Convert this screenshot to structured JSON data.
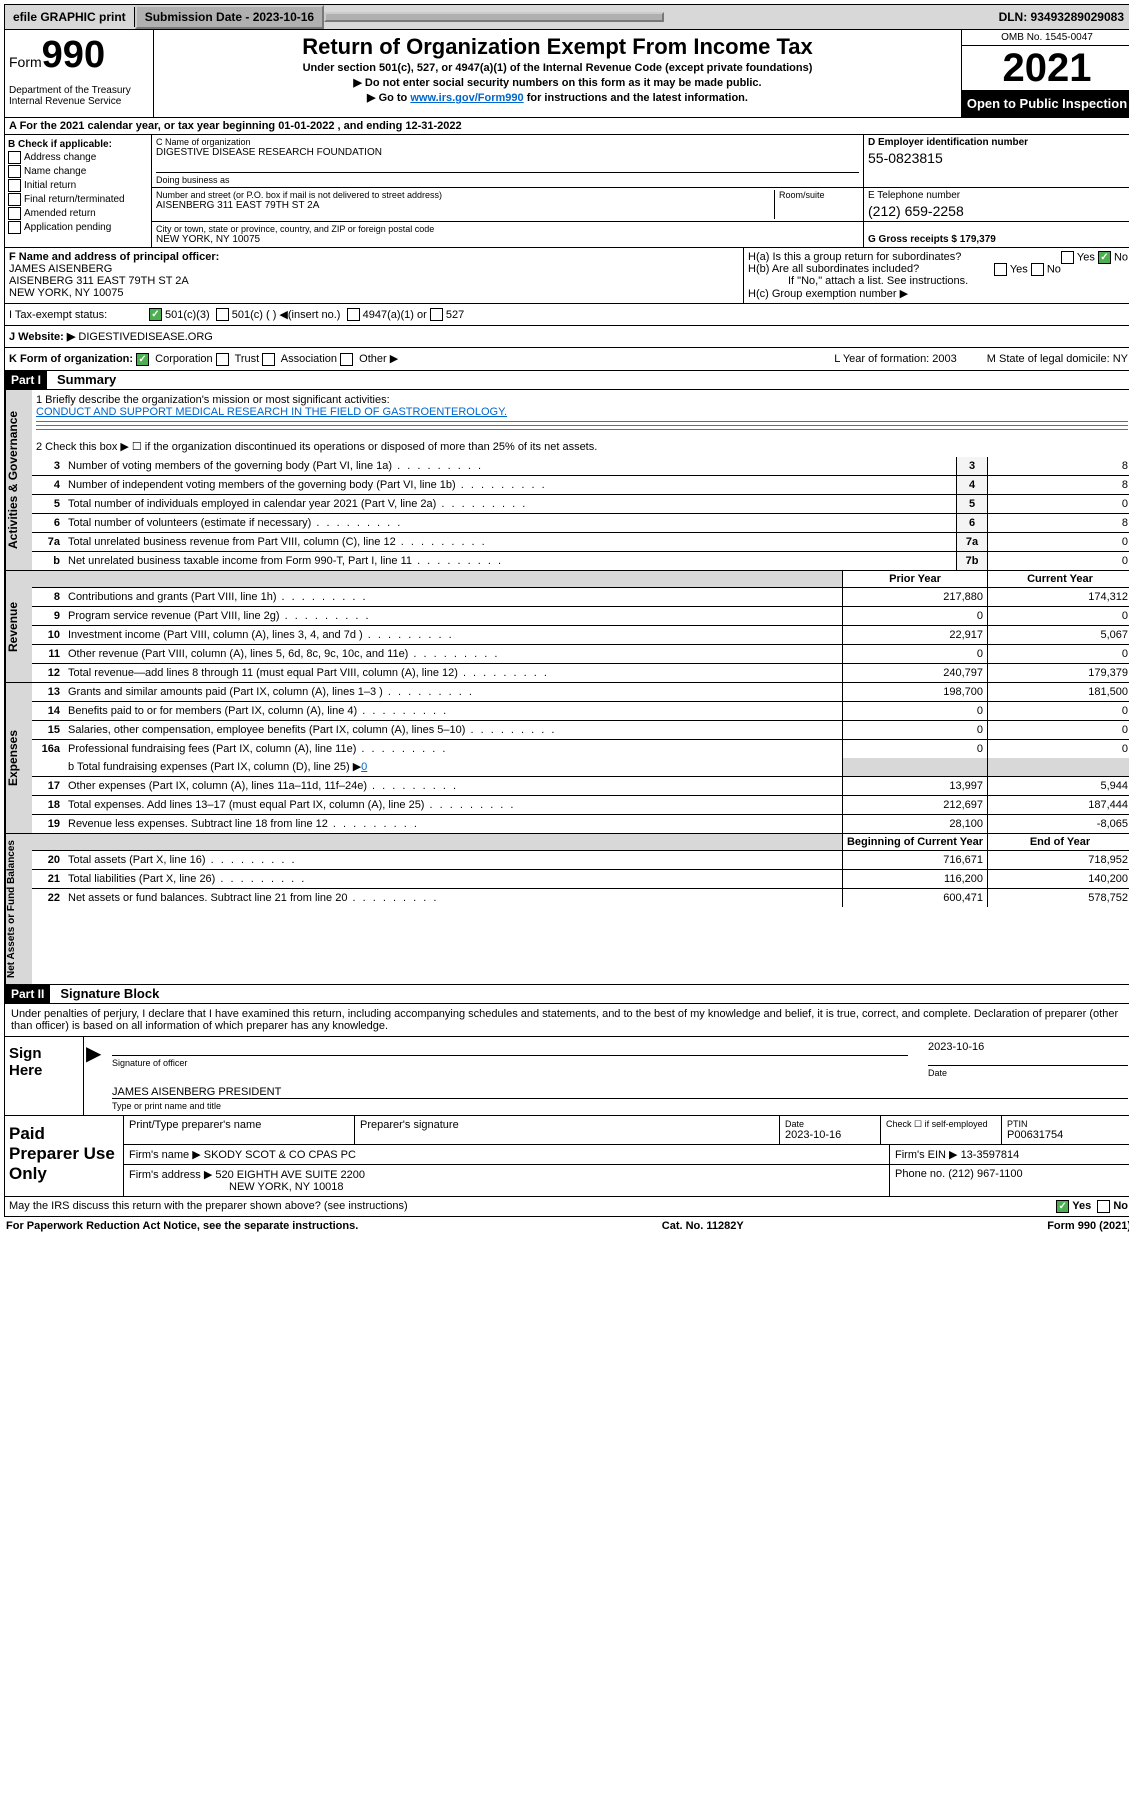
{
  "topbar": {
    "efile": "efile GRAPHIC print",
    "submission_label": "Submission Date - 2023-10-16",
    "dln": "DLN: 93493289029083"
  },
  "header": {
    "form_label": "Form",
    "form_number": "990",
    "dept": "Department of the Treasury Internal Revenue Service",
    "title": "Return of Organization Exempt From Income Tax",
    "sub1": "Under section 501(c), 527, or 4947(a)(1) of the Internal Revenue Code (except private foundations)",
    "sub2": "▶ Do not enter social security numbers on this form as it may be made public.",
    "sub3_pre": "▶ Go to ",
    "sub3_link": "www.irs.gov/Form990",
    "sub3_post": " for instructions and the latest information.",
    "omb": "OMB No. 1545-0047",
    "year": "2021",
    "open": "Open to Public Inspection"
  },
  "row_a": "A For the 2021 calendar year, or tax year beginning 01-01-2022   , and ending 12-31-2022",
  "col_b": {
    "header": "B Check if applicable:",
    "opts": [
      "Address change",
      "Name change",
      "Initial return",
      "Final return/terminated",
      "Amended return",
      "Application pending"
    ]
  },
  "col_c": {
    "name_lbl": "C Name of organization",
    "name": "DIGESTIVE DISEASE RESEARCH FOUNDATION",
    "dba_lbl": "Doing business as",
    "addr_lbl": "Number and street (or P.O. box if mail is not delivered to street address)",
    "room_lbl": "Room/suite",
    "addr": "AISENBERG 311 EAST 79TH ST 2A",
    "city_lbl": "City or town, state or province, country, and ZIP or foreign postal code",
    "city": "NEW YORK, NY  10075"
  },
  "col_d": {
    "ein_lbl": "D Employer identification number",
    "ein": "55-0823815",
    "tel_lbl": "E Telephone number",
    "tel": "(212) 659-2258",
    "gross_lbl": "G Gross receipts $ 179,379"
  },
  "fgh": {
    "f_lbl": "F Name and address of principal officer:",
    "f_name": "JAMES AISENBERG",
    "f_addr1": "AISENBERG 311 EAST 79TH ST 2A",
    "f_addr2": "NEW YORK, NY  10075",
    "ha": "H(a)  Is this a group return for subordinates?",
    "hb": "H(b)  Are all subordinates included?",
    "hb_note": "If \"No,\" attach a list. See instructions.",
    "hc": "H(c)  Group exemption number ▶",
    "yes": "Yes",
    "no": "No"
  },
  "i_row": {
    "lbl": "I   Tax-exempt status:",
    "o1": "501(c)(3)",
    "o2": "501(c) (   ) ◀(insert no.)",
    "o3": "4947(a)(1) or",
    "o4": "527"
  },
  "j_row": {
    "lbl": "J   Website: ▶",
    "val": "DIGESTIVEDISEASE.ORG"
  },
  "k_row": {
    "lbl": "K Form of organization:",
    "o1": "Corporation",
    "o2": "Trust",
    "o3": "Association",
    "o4": "Other ▶",
    "l": "L Year of formation: 2003",
    "m": "M State of legal domicile: NY"
  },
  "part1": {
    "hdr": "Part I",
    "title": "Summary"
  },
  "governance": {
    "label": "Activities & Governance",
    "l1": "1  Briefly describe the organization's mission or most significant activities:",
    "mission": "CONDUCT AND SUPPORT MEDICAL RESEARCH IN THE FIELD OF GASTROENTEROLOGY.",
    "l2": "2  Check this box ▶ ☐  if the organization discontinued its operations or disposed of more than 25% of its net assets.",
    "rows": [
      {
        "n": "3",
        "d": "Number of voting members of the governing body (Part VI, line 1a)",
        "box": "3",
        "v": "8"
      },
      {
        "n": "4",
        "d": "Number of independent voting members of the governing body (Part VI, line 1b)",
        "box": "4",
        "v": "8"
      },
      {
        "n": "5",
        "d": "Total number of individuals employed in calendar year 2021 (Part V, line 2a)",
        "box": "5",
        "v": "0"
      },
      {
        "n": "6",
        "d": "Total number of volunteers (estimate if necessary)",
        "box": "6",
        "v": "8"
      },
      {
        "n": "7a",
        "d": "Total unrelated business revenue from Part VIII, column (C), line 12",
        "box": "7a",
        "v": "0"
      },
      {
        "n": "b",
        "d": "Net unrelated business taxable income from Form 990-T, Part I, line 11",
        "box": "7b",
        "v": "0"
      }
    ]
  },
  "colheads": {
    "prior": "Prior Year",
    "current": "Current Year",
    "beg": "Beginning of Current Year",
    "end": "End of Year"
  },
  "revenue": {
    "label": "Revenue",
    "rows": [
      {
        "n": "8",
        "d": "Contributions and grants (Part VIII, line 1h)",
        "p": "217,880",
        "c": "174,312"
      },
      {
        "n": "9",
        "d": "Program service revenue (Part VIII, line 2g)",
        "p": "0",
        "c": "0"
      },
      {
        "n": "10",
        "d": "Investment income (Part VIII, column (A), lines 3, 4, and 7d )",
        "p": "22,917",
        "c": "5,067"
      },
      {
        "n": "11",
        "d": "Other revenue (Part VIII, column (A), lines 5, 6d, 8c, 9c, 10c, and 11e)",
        "p": "0",
        "c": "0"
      },
      {
        "n": "12",
        "d": "Total revenue—add lines 8 through 11 (must equal Part VIII, column (A), line 12)",
        "p": "240,797",
        "c": "179,379"
      }
    ]
  },
  "expenses": {
    "label": "Expenses",
    "rows": [
      {
        "n": "13",
        "d": "Grants and similar amounts paid (Part IX, column (A), lines 1–3 )",
        "p": "198,700",
        "c": "181,500"
      },
      {
        "n": "14",
        "d": "Benefits paid to or for members (Part IX, column (A), line 4)",
        "p": "0",
        "c": "0"
      },
      {
        "n": "15",
        "d": "Salaries, other compensation, employee benefits (Part IX, column (A), lines 5–10)",
        "p": "0",
        "c": "0"
      },
      {
        "n": "16a",
        "d": "Professional fundraising fees (Part IX, column (A), line 11e)",
        "p": "0",
        "c": "0"
      }
    ],
    "l16b_pre": "b  Total fundraising expenses (Part IX, column (D), line 25) ▶",
    "l16b_val": "0",
    "rows2": [
      {
        "n": "17",
        "d": "Other expenses (Part IX, column (A), lines 11a–11d, 11f–24e)",
        "p": "13,997",
        "c": "5,944"
      },
      {
        "n": "18",
        "d": "Total expenses. Add lines 13–17 (must equal Part IX, column (A), line 25)",
        "p": "212,697",
        "c": "187,444"
      },
      {
        "n": "19",
        "d": "Revenue less expenses. Subtract line 18 from line 12",
        "p": "28,100",
        "c": "-8,065"
      }
    ]
  },
  "netassets": {
    "label": "Net Assets or Fund Balances",
    "rows": [
      {
        "n": "20",
        "d": "Total assets (Part X, line 16)",
        "p": "716,671",
        "c": "718,952"
      },
      {
        "n": "21",
        "d": "Total liabilities (Part X, line 26)",
        "p": "116,200",
        "c": "140,200"
      },
      {
        "n": "22",
        "d": "Net assets or fund balances. Subtract line 21 from line 20",
        "p": "600,471",
        "c": "578,752"
      }
    ]
  },
  "part2": {
    "hdr": "Part II",
    "title": "Signature Block"
  },
  "sig": {
    "decl": "Under penalties of perjury, I declare that I have examined this return, including accompanying schedules and statements, and to the best of my knowledge and belief, it is true, correct, and complete. Declaration of preparer (other than officer) is based on all information of which preparer has any knowledge.",
    "here": "Sign Here",
    "officer": "Signature of officer",
    "date": "Date",
    "date_val": "2023-10-16",
    "name": "JAMES AISENBERG  PRESIDENT",
    "name_lbl": "Type or print name and title"
  },
  "prep": {
    "label": "Paid Preparer Use Only",
    "h1": "Print/Type preparer's name",
    "h2": "Preparer's signature",
    "h3": "Date",
    "h3v": "2023-10-16",
    "h4": "Check ☐ if self-employed",
    "h5": "PTIN",
    "h5v": "P00631754",
    "firm_lbl": "Firm's name   ▶",
    "firm": "SKODY SCOT & CO CPAS PC",
    "ein_lbl": "Firm's EIN ▶",
    "ein": "13-3597814",
    "addr_lbl": "Firm's address ▶",
    "addr1": "520 EIGHTH AVE SUITE 2200",
    "addr2": "NEW YORK, NY  10018",
    "phone_lbl": "Phone no.",
    "phone": "(212) 967-1100"
  },
  "footer": {
    "q": "May the IRS discuss this return with the preparer shown above? (see instructions)",
    "yes": "Yes",
    "no": "No",
    "pra": "For Paperwork Reduction Act Notice, see the separate instructions.",
    "cat": "Cat. No. 11282Y",
    "form": "Form 990 (2021)"
  }
}
